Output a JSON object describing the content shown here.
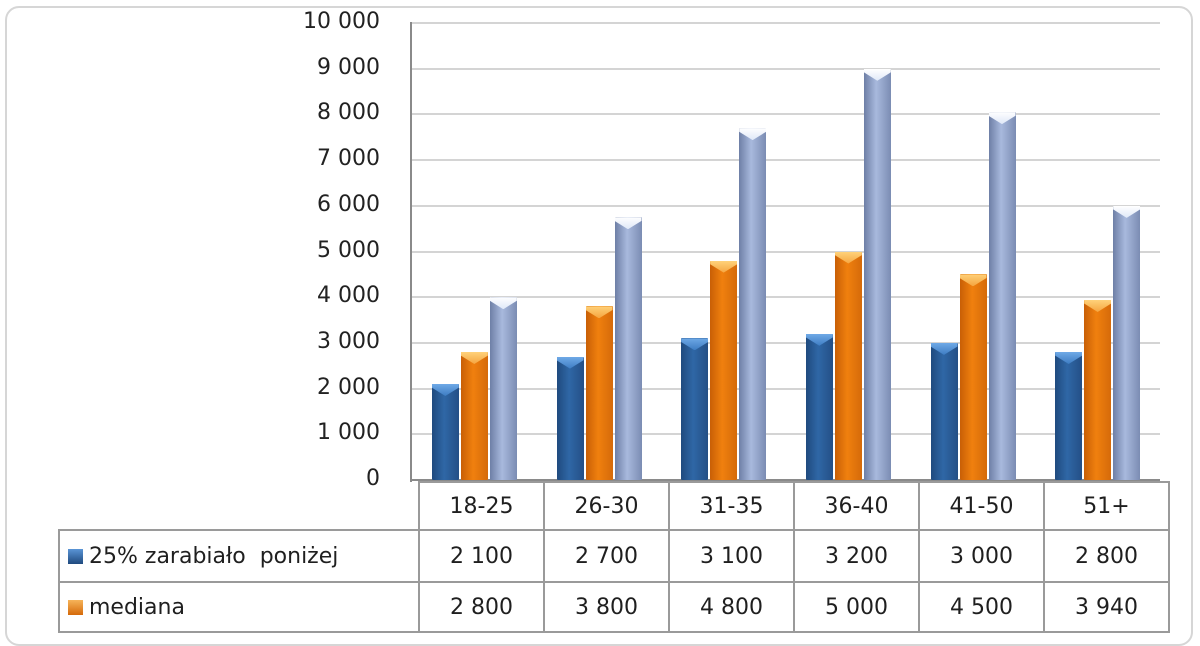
{
  "chart_data": {
    "type": "bar",
    "title": "",
    "xlabel": "",
    "ylabel": "",
    "ylim": [
      0,
      10000
    ],
    "yticks": [
      0,
      1000,
      2000,
      3000,
      4000,
      5000,
      6000,
      7000,
      8000,
      9000,
      10000
    ],
    "ytick_labels": [
      "0",
      "1 000",
      "2 000",
      "3 000",
      "4 000",
      "5 000",
      "6 000",
      "7 000",
      "8 000",
      "9 000",
      "10 000"
    ],
    "grid": true,
    "legend_position": "data-table-below",
    "categories": [
      "18-25",
      "26-30",
      "31-35",
      "36-40",
      "41-50",
      "51+"
    ],
    "series": [
      {
        "name": "25% zarabiało poniżej",
        "color": "#2f67a6",
        "values": [
          2100,
          2700,
          3100,
          3200,
          3000,
          2800
        ],
        "labels": [
          "2 100",
          "2 700",
          "3 100",
          "3 200",
          "3 000",
          "2 800"
        ]
      },
      {
        "name": "mediana",
        "color": "#f0800e",
        "values": [
          2800,
          3800,
          4800,
          5000,
          4500,
          3940
        ],
        "labels": [
          "2 800",
          "3 800",
          "4 800",
          "5 000",
          "4 500",
          "3 940"
        ]
      },
      {
        "name": "",
        "color": "#a8b9dd",
        "values": [
          4000,
          5750,
          7700,
          9000,
          8050,
          6000
        ],
        "estimated": true
      }
    ]
  },
  "table": {
    "header": [
      "18-25",
      "26-30",
      "31-35",
      "36-40",
      "41-50",
      "51+"
    ],
    "rows": [
      {
        "label": "25% zarabiało  poniżej",
        "cells": [
          "2 100",
          "2 700",
          "3 100",
          "3 200",
          "3 000",
          "2 800"
        ]
      },
      {
        "label": "mediana",
        "cells": [
          "2 800",
          "3 800",
          "4 800",
          "5 000",
          "4 500",
          "3 940"
        ]
      }
    ]
  }
}
